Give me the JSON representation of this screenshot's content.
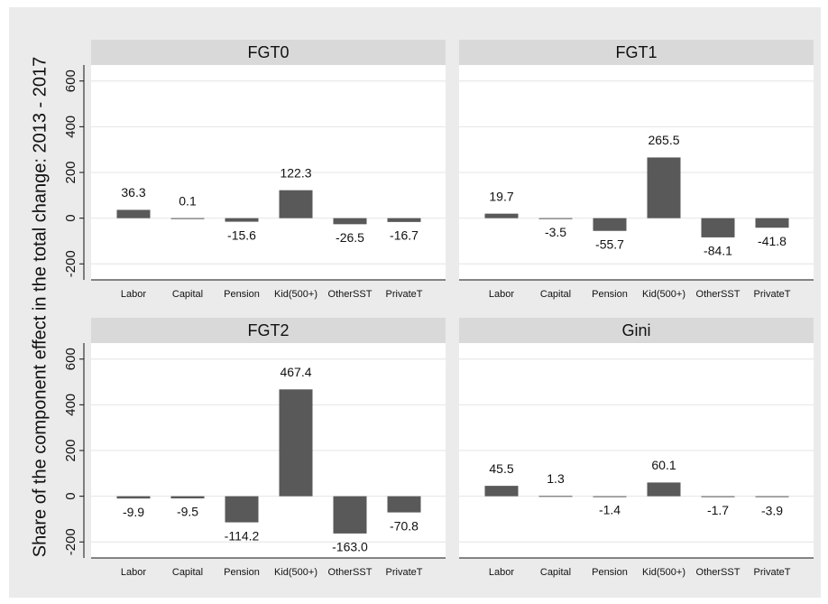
{
  "chart_data": [
    {
      "type": "bar",
      "title": "FGT0",
      "ylabel": "Share of the component effect in the total change: 2013 - 2017",
      "categories": [
        "Labor",
        "Capital",
        "Pension",
        "Kid(500+)",
        "OtherSST",
        "PrivateT"
      ],
      "values": [
        36.3,
        0.1,
        -15.6,
        122.3,
        -26.5,
        -16.7
      ],
      "value_labels": [
        "36.3",
        "0.1",
        "-15.6",
        "122.3",
        "-26.5",
        "-16.7"
      ],
      "color": "#595959",
      "ylim": [
        -270,
        670
      ],
      "yticks": [
        -200,
        0,
        200,
        400,
        600
      ],
      "grid": true
    },
    {
      "type": "bar",
      "title": "FGT1",
      "categories": [
        "Labor",
        "Capital",
        "Pension",
        "Kid(500+)",
        "OtherSST",
        "PrivateT"
      ],
      "values": [
        19.7,
        -3.5,
        -55.7,
        265.5,
        -84.1,
        -41.8
      ],
      "value_labels": [
        "19.7",
        "-3.5",
        "-55.7",
        "265.5",
        "-84.1",
        "-41.8"
      ],
      "color": "#595959",
      "ylim": [
        -270,
        670
      ],
      "yticks": [
        -200,
        0,
        200,
        400,
        600
      ],
      "grid": true
    },
    {
      "type": "bar",
      "title": "FGT2",
      "categories": [
        "Labor",
        "Capital",
        "Pension",
        "Kid(500+)",
        "OtherSST",
        "PrivateT"
      ],
      "values": [
        -9.9,
        -9.5,
        -114.2,
        467.4,
        -163.0,
        -70.8
      ],
      "value_labels": [
        "-9.9",
        "-9.5",
        "-114.2",
        "467.4",
        "-163.0",
        "-70.8"
      ],
      "color": "#595959",
      "ylim": [
        -270,
        670
      ],
      "yticks": [
        -200,
        0,
        200,
        400,
        600
      ],
      "grid": true
    },
    {
      "type": "bar",
      "title": "Gini",
      "categories": [
        "Labor",
        "Capital",
        "Pension",
        "Kid(500+)",
        "OtherSST",
        "PrivateT"
      ],
      "values": [
        45.5,
        1.3,
        -1.4,
        60.1,
        -1.7,
        -3.9
      ],
      "value_labels": [
        "45.5",
        "1.3",
        "-1.4",
        "60.1",
        "-1.7",
        "-3.9"
      ],
      "color": "#595959",
      "ylim": [
        -270,
        670
      ],
      "yticks": [
        -200,
        0,
        200,
        400,
        600
      ],
      "grid": true
    }
  ]
}
